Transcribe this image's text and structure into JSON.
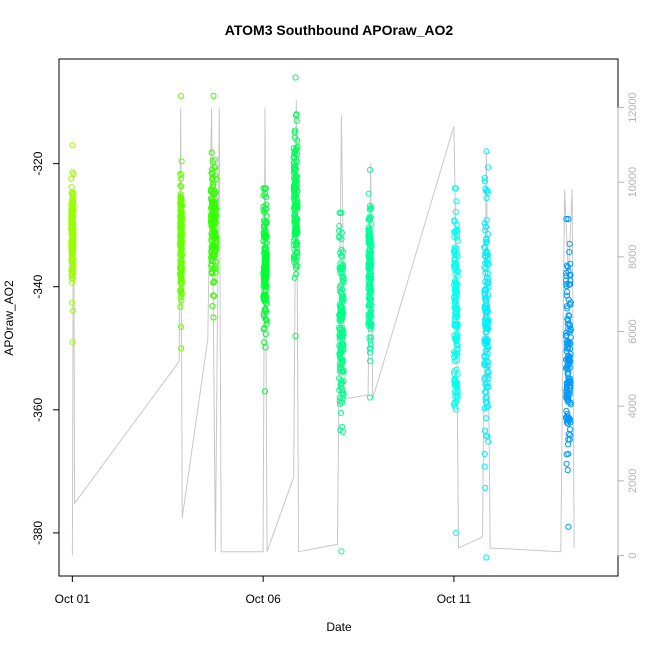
{
  "chart_data": {
    "type": "scatter",
    "title": "ATOM3 Southbound APOraw_AO2",
    "xlabel": "Date",
    "ylabel": "APOraw_AO2",
    "x_ticks": [
      {
        "day": 1,
        "label": "Oct 01"
      },
      {
        "day": 6,
        "label": "Oct 06"
      },
      {
        "day": 11,
        "label": "Oct 11"
      }
    ],
    "xlim_day": [
      0.65,
      15.3
    ],
    "ylim": [
      -387,
      -303
    ],
    "y_ticks": [
      -320,
      -340,
      -360,
      -380
    ],
    "y2_ticks": [
      0,
      2000,
      4000,
      6000,
      8000,
      10000,
      12000
    ],
    "y2lim": [
      -550,
      13300
    ],
    "grid": false,
    "legend": "none",
    "marker": "open-circle",
    "colors": {
      "altitude_line": "#c8c8c8",
      "axis_secondary": "#b3b3b3"
    },
    "clusters": [
      {
        "day": 1.0,
        "width": 0.06,
        "center": -332,
        "spread": 4.5,
        "min": -349,
        "max": -317,
        "color": "#99ff00"
      },
      {
        "day": 3.85,
        "width": 0.05,
        "center": -332,
        "spread": 5,
        "min": -350,
        "max": -309,
        "color": "#66ff00"
      },
      {
        "day": 4.7,
        "width": 0.14,
        "center": -330,
        "spread": 5,
        "min": -345,
        "max": -309,
        "color": "#33ff00"
      },
      {
        "day": 6.05,
        "width": 0.09,
        "center": -338,
        "spread": 6,
        "min": -357,
        "max": -324,
        "color": "#00ff33"
      },
      {
        "day": 6.85,
        "width": 0.1,
        "center": -326,
        "spread": 6,
        "min": -348,
        "max": -306,
        "color": "#00ff55"
      },
      {
        "day": 8.05,
        "width": 0.12,
        "center": -346,
        "spread": 7,
        "min": -383,
        "max": -328,
        "color": "#00ff88"
      },
      {
        "day": 8.8,
        "width": 0.08,
        "center": -338,
        "spread": 6,
        "min": -358,
        "max": -321,
        "color": "#00ff99"
      },
      {
        "day": 11.05,
        "width": 0.1,
        "center": -343,
        "spread": 9,
        "min": -380,
        "max": -324,
        "color": "#00ffee"
      },
      {
        "day": 11.85,
        "width": 0.11,
        "center": -345,
        "spread": 10,
        "min": -384,
        "max": -318,
        "color": "#00eeff"
      },
      {
        "day": 14.0,
        "width": 0.13,
        "center": -351,
        "spread": 8,
        "min": -379,
        "max": -329,
        "color": "#0099ff"
      }
    ],
    "altitude_trace": [
      {
        "day": 1.0,
        "alt": 0
      },
      {
        "day": 1.02,
        "alt": 7500
      },
      {
        "day": 1.04,
        "alt": 8000
      },
      {
        "day": 1.06,
        "alt": 1400
      },
      {
        "day": 3.8,
        "alt": 5200
      },
      {
        "day": 3.84,
        "alt": 12000
      },
      {
        "day": 3.88,
        "alt": 1000
      },
      {
        "day": 4.55,
        "alt": 5800
      },
      {
        "day": 4.65,
        "alt": 12000
      },
      {
        "day": 4.75,
        "alt": 100
      },
      {
        "day": 4.85,
        "alt": 12000
      },
      {
        "day": 4.9,
        "alt": 100
      },
      {
        "day": 6.0,
        "alt": 100
      },
      {
        "day": 6.05,
        "alt": 12000
      },
      {
        "day": 6.1,
        "alt": 100
      },
      {
        "day": 6.8,
        "alt": 2100
      },
      {
        "day": 6.87,
        "alt": 12200
      },
      {
        "day": 6.93,
        "alt": 100
      },
      {
        "day": 7.95,
        "alt": 300
      },
      {
        "day": 8.05,
        "alt": 11800
      },
      {
        "day": 8.15,
        "alt": 4200
      },
      {
        "day": 8.75,
        "alt": 4300
      },
      {
        "day": 8.82,
        "alt": 10500
      },
      {
        "day": 8.87,
        "alt": 4200
      },
      {
        "day": 11.0,
        "alt": 11500
      },
      {
        "day": 11.06,
        "alt": 8000
      },
      {
        "day": 11.12,
        "alt": 200
      },
      {
        "day": 11.75,
        "alt": 500
      },
      {
        "day": 11.85,
        "alt": 10800
      },
      {
        "day": 11.95,
        "alt": 200
      },
      {
        "day": 13.8,
        "alt": 100
      },
      {
        "day": 13.9,
        "alt": 9800
      },
      {
        "day": 14.0,
        "alt": 7500
      },
      {
        "day": 14.1,
        "alt": 9800
      },
      {
        "day": 14.15,
        "alt": 200
      }
    ]
  }
}
